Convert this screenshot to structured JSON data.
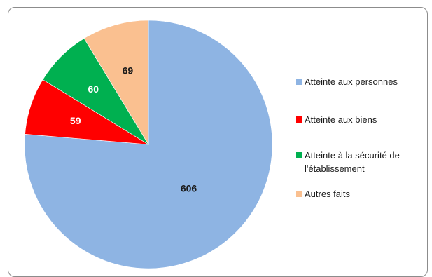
{
  "chart_data": {
    "type": "pie",
    "title": "",
    "slices": [
      {
        "label": "Atteinte aux personnes",
        "value": 606,
        "color": "#8EB4E3"
      },
      {
        "label": "Atteinte aux biens",
        "value": 59,
        "color": "#FF0000"
      },
      {
        "label": "Atteinte à la sécurité de l'établissement",
        "value": 60,
        "color": "#00B050"
      },
      {
        "label": "Autres faits",
        "value": 69,
        "color": "#FAC090"
      }
    ],
    "start_angle": "12 o'clock, clockwise",
    "legend_position": "right"
  }
}
